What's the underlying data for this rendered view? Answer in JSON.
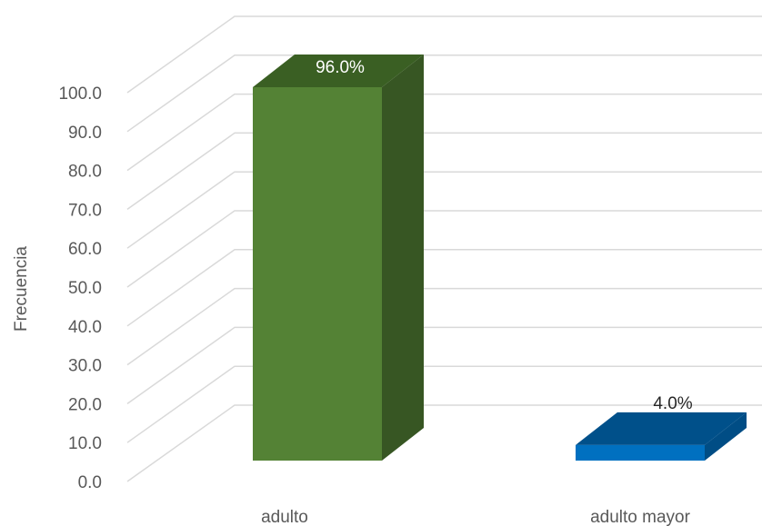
{
  "chart_data": {
    "type": "bar",
    "style": "3d-column",
    "categories": [
      "adulto",
      "adulto mayor"
    ],
    "values": [
      96.0,
      4.0
    ],
    "data_labels": [
      "96.0%",
      "4.0%"
    ],
    "title": "",
    "xlabel": "",
    "ylabel": "Frecuencia",
    "ylim": [
      0,
      100
    ],
    "yticks": [
      "0.0",
      "10.0",
      "20.0",
      "30.0",
      "40.0",
      "50.0",
      "60.0",
      "70.0",
      "80.0",
      "90.0",
      "100.0"
    ],
    "grid": true,
    "legend": "none",
    "colors": {
      "bars": [
        {
          "front": "#548235",
          "top": "#3a5f23",
          "side": "#375623",
          "label": "#ffffff"
        },
        {
          "front": "#0070c0",
          "top": "#00508a",
          "side": "#004d85",
          "label": "#262626"
        }
      ],
      "grid": "#d9d9d9",
      "text": "#595959"
    }
  }
}
